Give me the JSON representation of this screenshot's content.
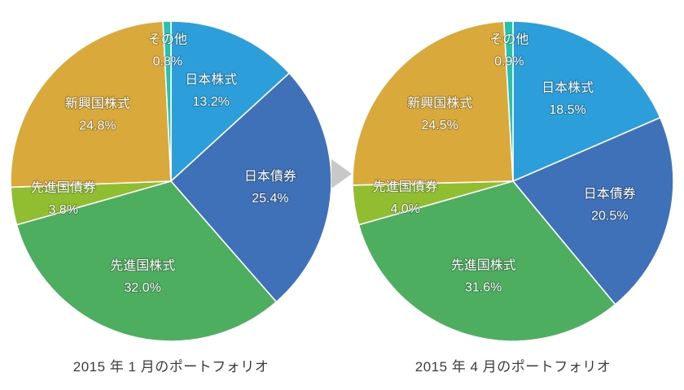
{
  "page": {
    "background_color": "#ffffff",
    "caption_text_color": "#3b3b3b"
  },
  "arrow": {
    "color": "#c8c8c8",
    "direction": "right"
  },
  "chart_data": [
    {
      "type": "pie",
      "title": "2015 年 1 月のポートフォリオ",
      "categories": [
        "日本株式",
        "日本債券",
        "先進国株式",
        "先進国債券",
        "新興国株式",
        "その他"
      ],
      "values": [
        13.2,
        25.4,
        32.0,
        3.8,
        24.8,
        0.8
      ],
      "labels": [
        "13.2%",
        "25.4%",
        "32.0%",
        "3.8%",
        "24.8%",
        "0.8%"
      ],
      "colors": [
        "#2c9ed9",
        "#3e71b8",
        "#4dae60",
        "#90be30",
        "#d9a93b",
        "#26c2ae"
      ],
      "start_angle_deg": 0,
      "direction": "clockwise",
      "label_position": "inside",
      "label_color": "#ffffff",
      "legend": "none"
    },
    {
      "type": "pie",
      "title": "2015 年 4 月のポートフォリオ",
      "categories": [
        "日本株式",
        "日本債券",
        "先進国株式",
        "先進国債券",
        "新興国株式",
        "その他"
      ],
      "values": [
        18.5,
        20.5,
        31.6,
        4.0,
        24.5,
        0.9
      ],
      "labels": [
        "18.5%",
        "20.5%",
        "31.6%",
        "4.0%",
        "24.5%",
        "0.9%"
      ],
      "colors": [
        "#2c9ed9",
        "#3e71b8",
        "#4dae60",
        "#90be30",
        "#d9a93b",
        "#26c2ae"
      ],
      "start_angle_deg": 0,
      "direction": "clockwise",
      "label_position": "inside",
      "label_color": "#ffffff",
      "legend": "none"
    }
  ]
}
